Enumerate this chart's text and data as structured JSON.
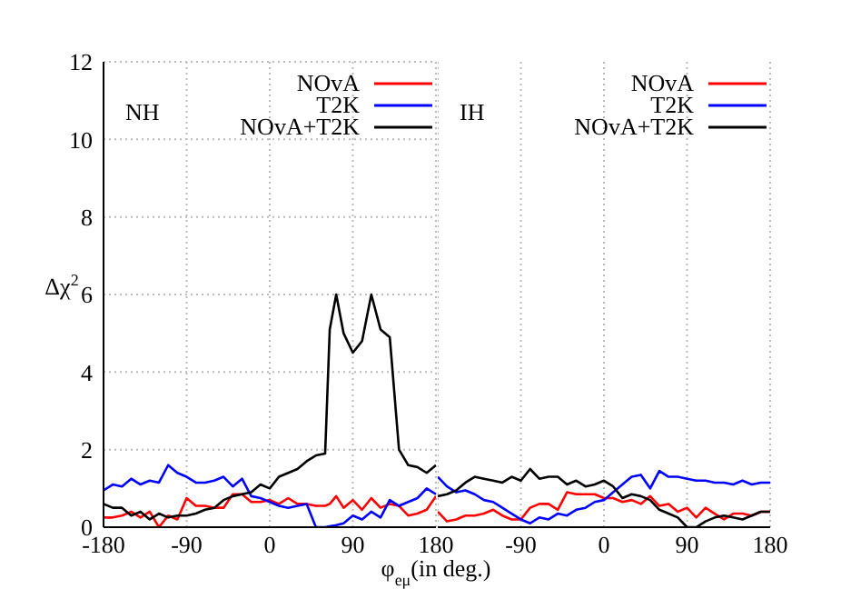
{
  "chart_data": [
    {
      "type": "line",
      "ylabel": "Δχ$^{2}$",
      "xlabel": "φ$_{eμ}$(in deg.)",
      "annotations": [
        "NH"
      ],
      "legend": "top right",
      "grid": true,
      "line_style": "solid",
      "marker": "none",
      "x": [
        -180,
        -170,
        -160,
        -150,
        -140,
        -130,
        -120,
        -110,
        -100,
        -90,
        -80,
        -70,
        -60,
        -50,
        -40,
        -30,
        -20,
        -10,
        0,
        10,
        20,
        30,
        40,
        50,
        60,
        65,
        72,
        80,
        90,
        100,
        110,
        120,
        130,
        140,
        150,
        160,
        170,
        180
      ],
      "xlim": [
        -180,
        180
      ],
      "xticks": [
        -180,
        -90,
        0,
        90,
        180
      ],
      "ylim": [
        0,
        12
      ],
      "yticks": [
        0,
        2,
        4,
        6,
        8,
        10,
        12
      ],
      "series": [
        {
          "name": "NOvA",
          "color": "#ff0000",
          "values": [
            0.25,
            0.25,
            0.3,
            0.4,
            0.25,
            0.4,
            0.0,
            0.3,
            0.2,
            0.75,
            0.55,
            0.55,
            0.5,
            0.5,
            0.85,
            0.85,
            0.65,
            0.65,
            0.7,
            0.6,
            0.75,
            0.6,
            0.6,
            0.55,
            0.55,
            0.6,
            0.8,
            0.5,
            0.7,
            0.45,
            0.75,
            0.5,
            0.6,
            0.55,
            0.3,
            0.35,
            0.45,
            0.8
          ]
        },
        {
          "name": "T2K",
          "color": "#0000ff",
          "values": [
            0.95,
            1.1,
            1.05,
            1.25,
            1.1,
            1.2,
            1.15,
            1.6,
            1.4,
            1.3,
            1.15,
            1.15,
            1.2,
            1.3,
            1.05,
            1.25,
            0.8,
            0.75,
            0.65,
            0.55,
            0.5,
            0.55,
            0.6,
            0.0,
            0.0,
            0.02,
            0.05,
            0.1,
            0.3,
            0.2,
            0.4,
            0.25,
            0.7,
            0.55,
            0.65,
            0.75,
            1.0,
            0.85
          ]
        },
        {
          "name": "NOvA+T2K",
          "color": "#000000",
          "values": [
            0.6,
            0.5,
            0.5,
            0.3,
            0.4,
            0.2,
            0.35,
            0.25,
            0.3,
            0.3,
            0.35,
            0.45,
            0.5,
            0.7,
            0.8,
            0.85,
            0.9,
            1.1,
            1.0,
            1.3,
            1.4,
            1.5,
            1.7,
            1.85,
            1.9,
            5.1,
            6.0,
            5.0,
            4.5,
            4.8,
            6.0,
            5.1,
            4.9,
            2.0,
            1.6,
            1.55,
            1.4,
            1.6
          ]
        }
      ]
    },
    {
      "type": "line",
      "annotations": [
        "IH"
      ],
      "legend": "top right",
      "grid": true,
      "line_style": "solid",
      "marker": "none",
      "tick_labels": "x",
      "x": [
        -180,
        -170,
        -160,
        -150,
        -140,
        -130,
        -120,
        -110,
        -100,
        -90,
        -80,
        -70,
        -60,
        -50,
        -40,
        -30,
        -20,
        -10,
        0,
        10,
        20,
        30,
        40,
        50,
        60,
        70,
        80,
        90,
        100,
        110,
        120,
        130,
        140,
        150,
        160,
        170,
        180
      ],
      "xlim": [
        -180,
        180
      ],
      "xticks": [
        {
          "value": -180,
          "label": null
        },
        -90,
        0,
        90,
        180
      ],
      "ylim": [
        0,
        12
      ],
      "yticks": [
        0,
        2,
        4,
        6,
        8,
        10,
        12
      ],
      "series": [
        {
          "name": "NOvA",
          "color": "#ff0000",
          "values": [
            0.4,
            0.15,
            0.2,
            0.3,
            0.3,
            0.35,
            0.45,
            0.3,
            0.2,
            0.2,
            0.5,
            0.6,
            0.6,
            0.45,
            0.9,
            0.85,
            0.85,
            0.85,
            0.75,
            0.75,
            0.65,
            0.7,
            0.6,
            0.8,
            0.55,
            0.6,
            0.4,
            0.5,
            0.25,
            0.5,
            0.35,
            0.2,
            0.35,
            0.35,
            0.3,
            0.4,
            0.4
          ]
        },
        {
          "name": "T2K",
          "color": "#0000ff",
          "values": [
            1.3,
            1.05,
            0.9,
            0.95,
            0.85,
            0.7,
            0.65,
            0.5,
            0.35,
            0.2,
            0.1,
            0.25,
            0.2,
            0.35,
            0.3,
            0.45,
            0.5,
            0.65,
            0.7,
            0.9,
            1.1,
            1.3,
            1.35,
            1.0,
            1.45,
            1.3,
            1.3,
            1.25,
            1.2,
            1.2,
            1.15,
            1.15,
            1.1,
            1.2,
            1.1,
            1.15,
            1.15
          ]
        },
        {
          "name": "NOvA+T2K",
          "color": "#000000",
          "values": [
            0.8,
            0.85,
            0.95,
            1.15,
            1.3,
            1.25,
            1.2,
            1.15,
            1.3,
            1.2,
            1.5,
            1.25,
            1.3,
            1.3,
            1.1,
            1.2,
            1.05,
            1.1,
            1.2,
            1.05,
            0.75,
            0.85,
            0.8,
            0.7,
            0.45,
            0.35,
            0.25,
            0.0,
            0.0,
            0.15,
            0.25,
            0.3,
            0.25,
            0.2,
            0.3,
            0.4,
            0.4
          ]
        }
      ]
    }
  ]
}
